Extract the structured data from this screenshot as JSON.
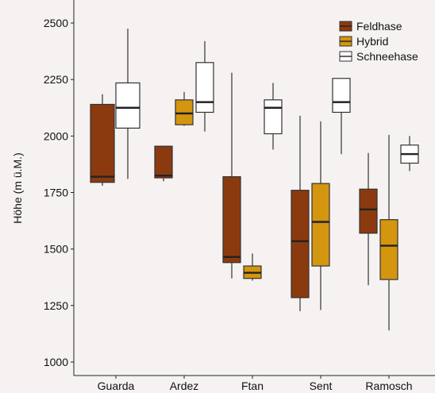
{
  "chart_data": {
    "type": "boxplot",
    "title": "",
    "xlabel": "",
    "ylabel": "Höhe (m ü.M.)",
    "ylim": [
      950,
      2560
    ],
    "yticks": [
      1000,
      1250,
      1500,
      1750,
      2000,
      2250,
      2500
    ],
    "grid": false,
    "legend_position": "top-right",
    "categories": [
      "Guarda",
      "Ardez",
      "Ftan",
      "Sent",
      "Ramosch"
    ],
    "series": [
      {
        "name": "Feldhase",
        "color": "#8b3a0f",
        "boxes": [
          {
            "category": "Guarda",
            "whisker_low": 1780,
            "q1": 1795,
            "median": 1820,
            "q3": 2140,
            "whisker_high": 2185
          },
          {
            "category": "Ardez",
            "whisker_low": 1800,
            "q1": 1815,
            "median": 1825,
            "q3": 1955,
            "whisker_high": 1955
          },
          {
            "category": "Ftan",
            "whisker_low": 1370,
            "q1": 1440,
            "median": 1465,
            "q3": 1820,
            "whisker_high": 2280
          },
          {
            "category": "Sent",
            "whisker_low": 1225,
            "q1": 1285,
            "median": 1535,
            "q3": 1760,
            "whisker_high": 2090
          },
          {
            "category": "Ramosch",
            "whisker_low": 1340,
            "q1": 1570,
            "median": 1675,
            "q3": 1765,
            "whisker_high": 1925
          }
        ]
      },
      {
        "name": "Hybrid",
        "color": "#d4950f",
        "boxes": [
          {
            "category": "Ardez",
            "whisker_low": 2045,
            "q1": 2050,
            "median": 2100,
            "q3": 2160,
            "whisker_high": 2195
          },
          {
            "category": "Ftan",
            "whisker_low": 1360,
            "q1": 1370,
            "median": 1395,
            "q3": 1425,
            "whisker_high": 1480
          },
          {
            "category": "Sent",
            "whisker_low": 1230,
            "q1": 1425,
            "median": 1620,
            "q3": 1790,
            "whisker_high": 2065
          },
          {
            "category": "Ramosch",
            "whisker_low": 1140,
            "q1": 1365,
            "median": 1515,
            "q3": 1630,
            "whisker_high": 2005
          }
        ]
      },
      {
        "name": "Schneehase",
        "color": "#ffffff",
        "boxes": [
          {
            "category": "Guarda",
            "whisker_low": 1810,
            "q1": 2035,
            "median": 2125,
            "q3": 2235,
            "whisker_high": 2475
          },
          {
            "category": "Ardez",
            "whisker_low": 2020,
            "q1": 2105,
            "median": 2150,
            "q3": 2325,
            "whisker_high": 2420
          },
          {
            "category": "Ftan",
            "whisker_low": 1940,
            "q1": 2010,
            "median": 2125,
            "q3": 2160,
            "whisker_high": 2235
          },
          {
            "category": "Sent",
            "whisker_low": 1920,
            "q1": 2105,
            "median": 2150,
            "q3": 2255,
            "whisker_high": 2255
          },
          {
            "category": "Ramosch",
            "whisker_low": 1845,
            "q1": 1880,
            "median": 1920,
            "q3": 1960,
            "whisker_high": 2000
          }
        ]
      }
    ]
  }
}
